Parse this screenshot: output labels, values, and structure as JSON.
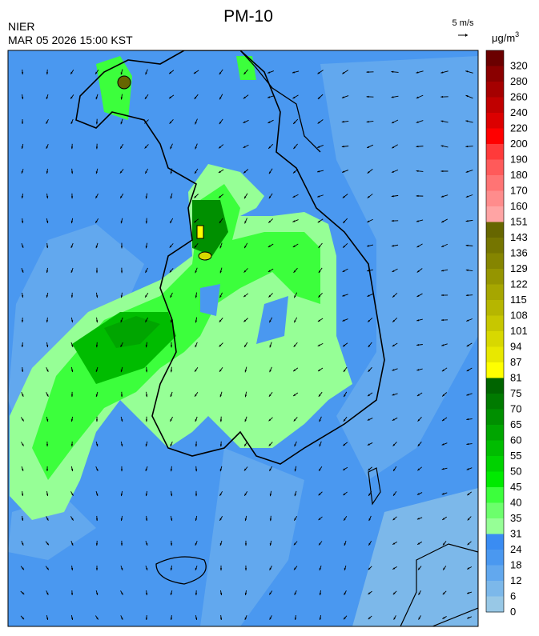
{
  "header": {
    "title": "PM-10",
    "agency": "NIER",
    "timestamp": "MAR 05 2026 15:00 KST",
    "wind_scale": "5 m/s",
    "unit": {
      "base": "μg/m",
      "sup": "3"
    }
  },
  "legend": {
    "levels": [
      {
        "label": 320,
        "color": "#6b0000"
      },
      {
        "label": 280,
        "color": "#8a0000"
      },
      {
        "label": 260,
        "color": "#a50000"
      },
      {
        "label": 240,
        "color": "#c00000"
      },
      {
        "label": 220,
        "color": "#dc0000"
      },
      {
        "label": 200,
        "color": "#ff0000"
      },
      {
        "label": 190,
        "color": "#ff3a3a"
      },
      {
        "label": 180,
        "color": "#ff5a5a"
      },
      {
        "label": 170,
        "color": "#ff7474"
      },
      {
        "label": 160,
        "color": "#ff8c8c"
      },
      {
        "label": 151,
        "color": "#ffa4a4"
      },
      {
        "label": 143,
        "color": "#666600"
      },
      {
        "label": 136,
        "color": "#757500"
      },
      {
        "label": 129,
        "color": "#858500"
      },
      {
        "label": 122,
        "color": "#959500"
      },
      {
        "label": 115,
        "color": "#a6a600"
      },
      {
        "label": 108,
        "color": "#b6b600"
      },
      {
        "label": 101,
        "color": "#c7c700"
      },
      {
        "label": 94,
        "color": "#d8d800"
      },
      {
        "label": 87,
        "color": "#e8e800"
      },
      {
        "label": 81,
        "color": "#ffff00"
      },
      {
        "label": 75,
        "color": "#006400"
      },
      {
        "label": 70,
        "color": "#007a00"
      },
      {
        "label": 65,
        "color": "#008f00"
      },
      {
        "label": 60,
        "color": "#00a500"
      },
      {
        "label": 55,
        "color": "#00bc00"
      },
      {
        "label": 50,
        "color": "#00d200"
      },
      {
        "label": 45,
        "color": "#00ea00"
      },
      {
        "label": 40,
        "color": "#3cff3c"
      },
      {
        "label": 35,
        "color": "#6cff6c"
      },
      {
        "label": 31,
        "color": "#96ff96"
      },
      {
        "label": 24,
        "color": "#3a8cf2"
      },
      {
        "label": 18,
        "color": "#4a98f0"
      },
      {
        "label": 12,
        "color": "#62a8ee"
      },
      {
        "label": 6,
        "color": "#7cb8ea"
      },
      {
        "label": 0,
        "color": "#98c8e6"
      }
    ]
  }
}
